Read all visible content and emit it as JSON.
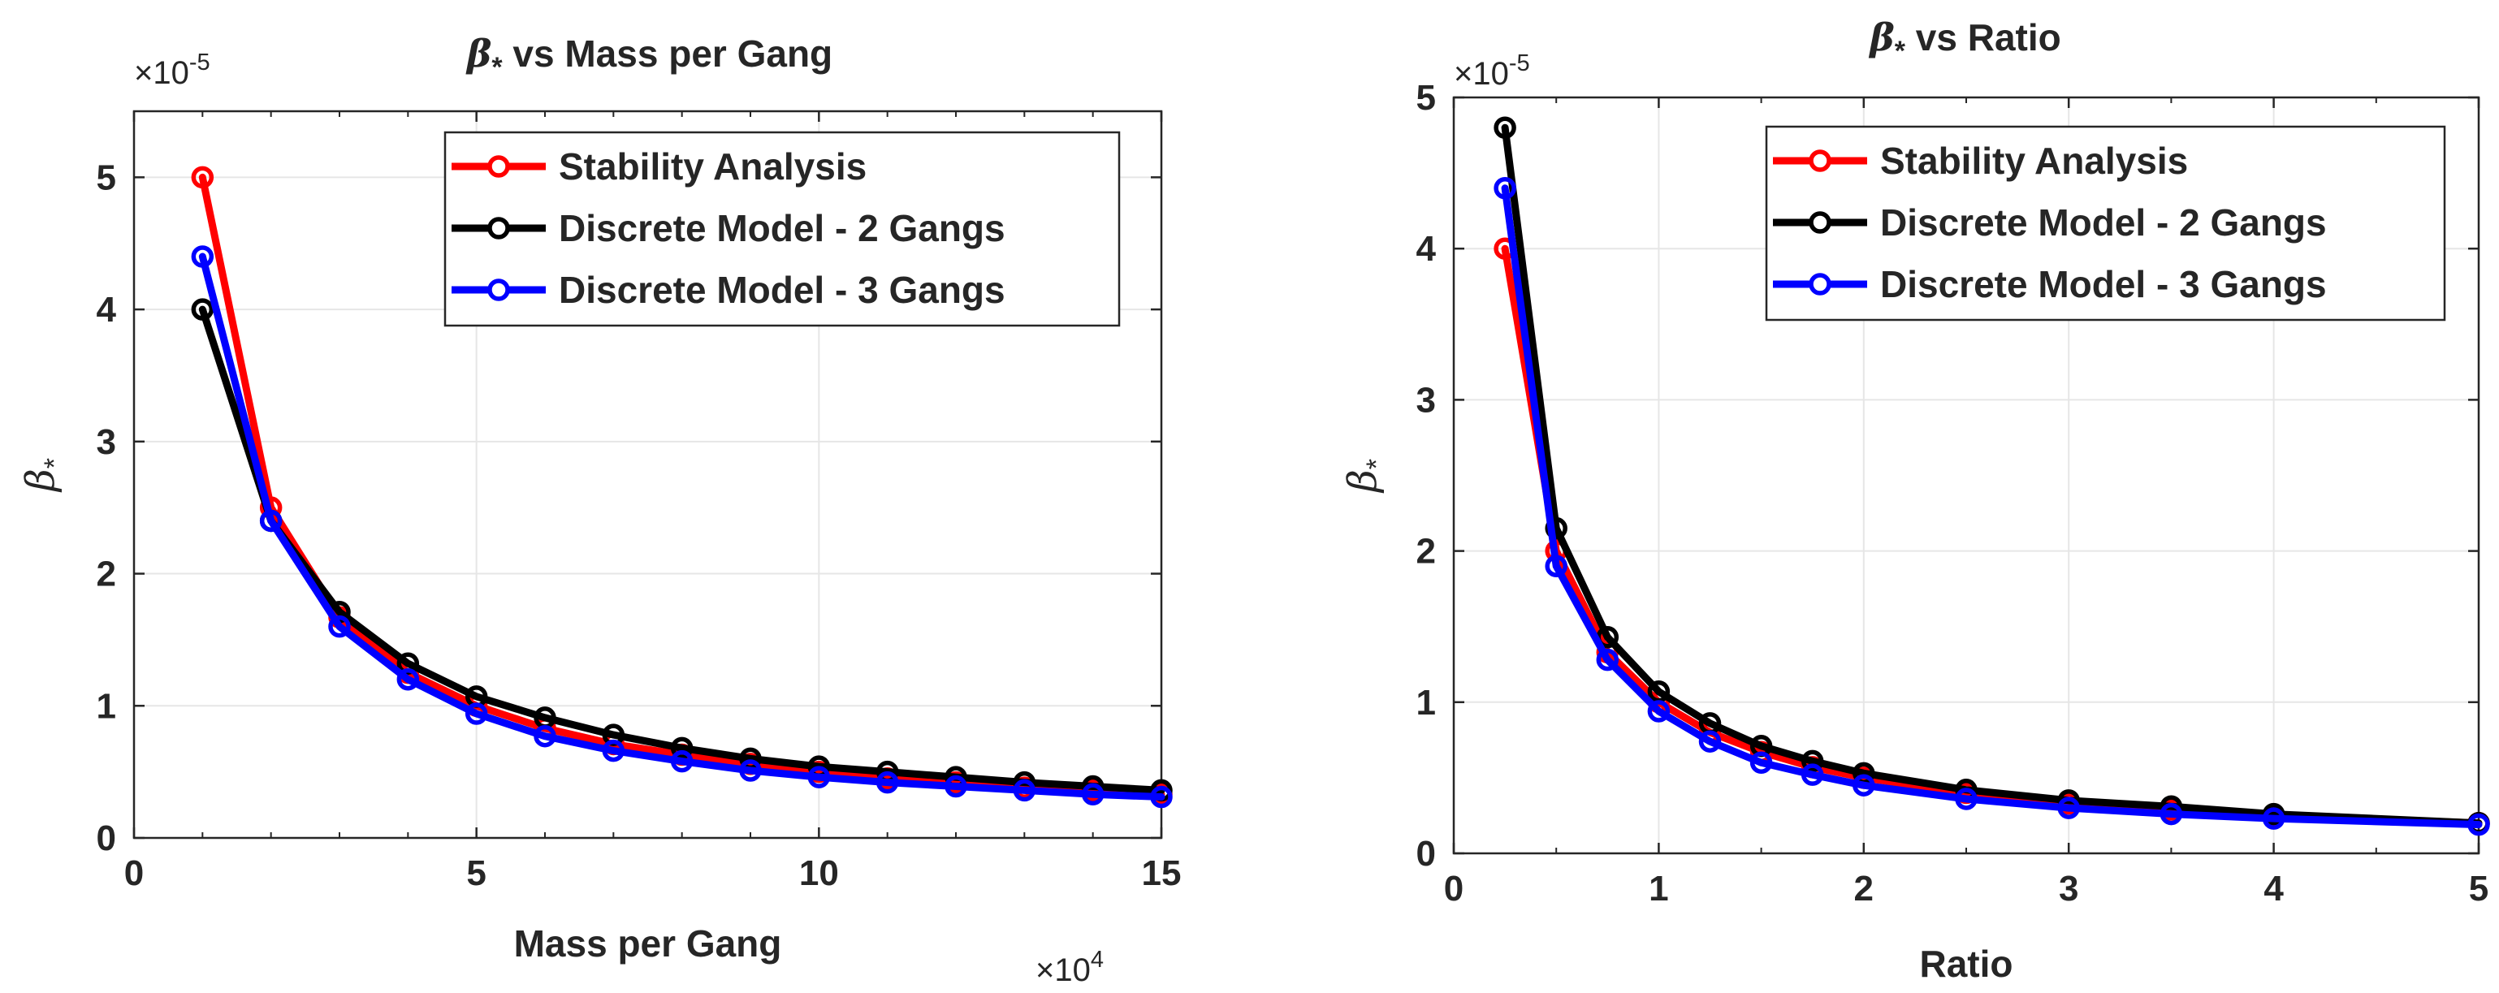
{
  "colors": {
    "red": "#ff0000",
    "black": "#000000",
    "blue": "#0000ff",
    "grid": "#e6e6e6",
    "text": "#262626"
  },
  "chart_data": [
    {
      "type": "line",
      "title": "β* vs Mass per Gang",
      "title_symbol": "β",
      "title_subscript": "*",
      "title_rest": "vs Mass per Gang",
      "xlabel": "Mass per Gang",
      "ylabel_symbol": "β",
      "ylabel_subscript": "*",
      "xlim": [
        0,
        150000
      ],
      "ylim": [
        0,
        5.5e-05
      ],
      "x_ticks": [
        0,
        50000,
        100000,
        150000
      ],
      "x_tick_labels": [
        "0",
        "5",
        "10",
        "15"
      ],
      "y_ticks": [
        0,
        1e-05,
        2e-05,
        3e-05,
        4e-05,
        5e-05
      ],
      "y_tick_labels": [
        "0",
        "1",
        "2",
        "3",
        "4",
        "5"
      ],
      "x_exponent": "×10",
      "x_exponent_power": "4",
      "y_exponent": "×10",
      "y_exponent_power": "-5",
      "x_minor_ticks": [
        10000,
        20000,
        30000,
        40000,
        60000,
        70000,
        80000,
        90000,
        110000,
        120000,
        130000,
        140000
      ],
      "grid": true,
      "legend_position": "top-right",
      "x": [
        10000,
        20000,
        30000,
        40000,
        50000,
        60000,
        70000,
        80000,
        90000,
        100000,
        110000,
        120000,
        130000,
        140000,
        150000
      ],
      "series": [
        {
          "name": "Stability Analysis",
          "color": "#ff0000",
          "values": [
            5e-05,
            2.5e-05,
            1.67e-05,
            1.25e-05,
            1e-05,
            8.3e-06,
            7.1e-06,
            6.3e-06,
            5.6e-06,
            5e-06,
            4.5e-06,
            4.2e-06,
            3.8e-06,
            3.6e-06,
            3.3e-06
          ]
        },
        {
          "name": "Discrete Model - 2 Gangs",
          "color": "#000000",
          "values": [
            4e-05,
            2.4e-05,
            1.71e-05,
            1.32e-05,
            1.07e-05,
            9.1e-06,
            7.8e-06,
            6.8e-06,
            6e-06,
            5.4e-06,
            5e-06,
            4.6e-06,
            4.2e-06,
            3.9e-06,
            3.6e-06
          ]
        },
        {
          "name": "Discrete Model - 3 Gangs",
          "color": "#0000ff",
          "values": [
            4.4e-05,
            2.4e-05,
            1.6e-05,
            1.2e-05,
            9.4e-06,
            7.7e-06,
            6.6e-06,
            5.8e-06,
            5.1e-06,
            4.6e-06,
            4.2e-06,
            3.9e-06,
            3.6e-06,
            3.3e-06,
            3.1e-06
          ]
        }
      ]
    },
    {
      "type": "line",
      "title": "β* vs Ratio",
      "title_symbol": "β",
      "title_subscript": "*",
      "title_rest": "vs Ratio",
      "xlabel": "Ratio",
      "ylabel_symbol": "β",
      "ylabel_subscript": "*",
      "xlim": [
        0,
        5
      ],
      "ylim": [
        0,
        5e-05
      ],
      "x_ticks": [
        0,
        1,
        2,
        3,
        4,
        5
      ],
      "x_tick_labels": [
        "0",
        "1",
        "2",
        "3",
        "4",
        "5"
      ],
      "y_ticks": [
        0,
        1e-05,
        2e-05,
        3e-05,
        4e-05,
        5e-05
      ],
      "y_tick_labels": [
        "0",
        "1",
        "2",
        "3",
        "4",
        "5"
      ],
      "y_exponent": "×10",
      "y_exponent_power": "-5",
      "x_minor_ticks": [
        0.5,
        1.5,
        2.5,
        3.5,
        4.5
      ],
      "grid": true,
      "legend_position": "top-right",
      "x": [
        0.25,
        0.5,
        0.75,
        1,
        1.25,
        1.5,
        1.75,
        2,
        2.5,
        3,
        3.5,
        4,
        5
      ],
      "series": [
        {
          "name": "Stability Analysis",
          "color": "#ff0000",
          "values": [
            4e-05,
            2e-05,
            1.33e-05,
            1e-05,
            8e-06,
            6.7e-06,
            5.7e-06,
            5e-06,
            4e-06,
            3.3e-06,
            2.9e-06,
            2.5e-06,
            2e-06
          ]
        },
        {
          "name": "Discrete Model - 2 Gangs",
          "color": "#000000",
          "values": [
            4.8e-05,
            2.15e-05,
            1.43e-05,
            1.07e-05,
            8.6e-06,
            7.1e-06,
            6.1e-06,
            5.3e-06,
            4.2e-06,
            3.5e-06,
            3.1e-06,
            2.6e-06,
            2e-06
          ]
        },
        {
          "name": "Discrete Model - 3 Gangs",
          "color": "#0000ff",
          "values": [
            4.4e-05,
            1.9e-05,
            1.28e-05,
            9.4e-06,
            7.4e-06,
            6e-06,
            5.2e-06,
            4.5e-06,
            3.6e-06,
            3e-06,
            2.6e-06,
            2.3e-06,
            1.9e-06
          ]
        }
      ]
    }
  ]
}
